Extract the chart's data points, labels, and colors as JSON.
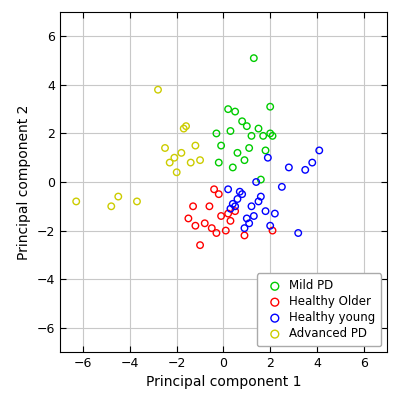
{
  "mild_pd": {
    "x": [
      -0.3,
      -0.1,
      0.2,
      0.3,
      0.5,
      0.8,
      1.0,
      1.2,
      1.5,
      1.7,
      2.0,
      2.1,
      0.6,
      0.9,
      1.1,
      -0.2,
      0.4,
      1.3,
      1.8,
      2.0,
      1.6
    ],
    "y": [
      2.0,
      1.5,
      3.0,
      2.1,
      2.9,
      2.5,
      2.3,
      1.9,
      2.2,
      1.9,
      2.0,
      1.9,
      1.2,
      0.9,
      1.4,
      0.8,
      0.6,
      5.1,
      1.3,
      3.1,
      0.1
    ],
    "color": "#00cc00",
    "label": "Mild PD"
  },
  "healthy_older": {
    "x": [
      -1.5,
      -1.2,
      -1.0,
      -0.8,
      -0.5,
      -0.3,
      -0.1,
      0.1,
      0.3,
      0.5,
      0.9,
      2.1,
      -0.6,
      -0.4,
      -1.3,
      -0.2,
      0.2
    ],
    "y": [
      -1.5,
      -1.8,
      -2.6,
      -1.7,
      -1.9,
      -2.1,
      -1.4,
      -2.0,
      -1.6,
      -1.2,
      -2.2,
      -2.0,
      -1.0,
      -0.3,
      -1.0,
      -0.5,
      -1.3
    ],
    "color": "#ff0000",
    "label": "Healthy Older"
  },
  "healthy_young": {
    "x": [
      0.2,
      0.5,
      0.8,
      1.0,
      1.2,
      1.5,
      1.8,
      2.0,
      2.2,
      3.2,
      3.5,
      3.8,
      4.1,
      0.9,
      1.3,
      1.6,
      2.5,
      0.4,
      1.1,
      0.7,
      1.4,
      0.3,
      0.6,
      1.9,
      2.8
    ],
    "y": [
      -0.3,
      -1.0,
      -0.5,
      -1.5,
      -1.0,
      -0.8,
      -1.2,
      -1.8,
      -1.3,
      -2.1,
      0.5,
      0.8,
      1.3,
      -1.9,
      -1.4,
      -0.6,
      -0.2,
      -0.9,
      -1.7,
      -0.4,
      0.0,
      -1.1,
      -0.7,
      1.0,
      0.6
    ],
    "color": "#0000ff",
    "label": "Healthy young"
  },
  "advanced_pd": {
    "x": [
      -6.3,
      -4.8,
      -4.5,
      -3.7,
      -2.5,
      -2.3,
      -2.1,
      -2.0,
      -1.8,
      -1.6,
      -1.4,
      -1.2,
      -1.0,
      -2.8,
      -1.7
    ],
    "y": [
      -0.8,
      -1.0,
      -0.6,
      -0.8,
      1.4,
      0.8,
      1.0,
      0.4,
      1.2,
      2.3,
      0.8,
      1.5,
      0.9,
      3.8,
      2.2
    ],
    "color": "#cccc00",
    "label": "Advanced PD"
  },
  "xlim": [
    -7,
    7
  ],
  "ylim": [
    -7,
    7
  ],
  "xticks": [
    -6,
    -4,
    -2,
    0,
    2,
    4,
    6
  ],
  "yticks": [
    -6,
    -4,
    -2,
    0,
    2,
    4,
    6
  ],
  "xlabel": "Principal component 1",
  "ylabel": "Principal component 2",
  "marker_size": 22,
  "linewidth": 1.0,
  "background_color": "#ffffff",
  "grid_color": "#c8c8c8",
  "tick_fontsize": 9,
  "label_fontsize": 10,
  "legend_fontsize": 8.5
}
